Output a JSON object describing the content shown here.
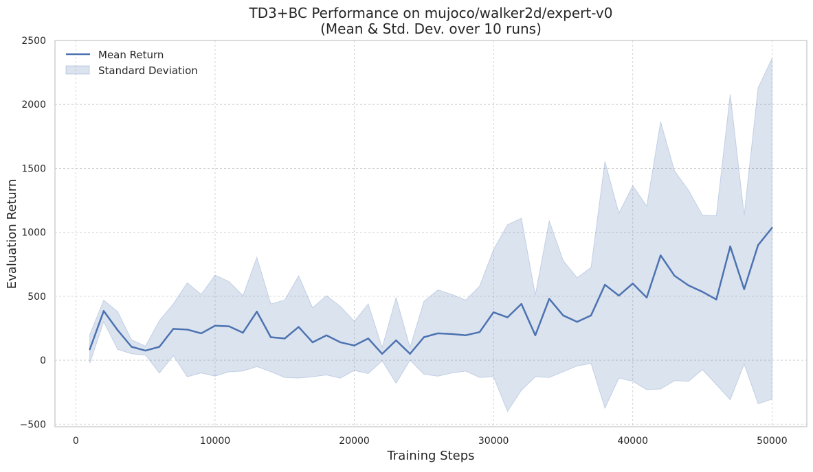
{
  "chart_data": {
    "type": "line",
    "title": "TD3+BC Performance on mujoco/walker2d/expert-v0",
    "subtitle": "(Mean & Std. Dev. over 10 runs)",
    "xlabel": "Training Steps",
    "ylabel": "Evaluation Return",
    "xlim": [
      -1500,
      52500
    ],
    "ylim": [
      -520,
      2500
    ],
    "xticks": [
      0,
      10000,
      20000,
      30000,
      40000,
      50000
    ],
    "yticks": [
      -500,
      0,
      500,
      1000,
      1500,
      2000,
      2500
    ],
    "grid": true,
    "legend_position": "top-left",
    "colors": {
      "line": "#4c72b0",
      "band": "#4c72b0"
    },
    "series": [
      {
        "name": "Mean Return",
        "kind": "line",
        "x": [
          1000,
          2000,
          3000,
          4000,
          5000,
          6000,
          7000,
          8000,
          9000,
          10000,
          11000,
          12000,
          13000,
          14000,
          15000,
          16000,
          17000,
          18000,
          19000,
          20000,
          21000,
          22000,
          23000,
          24000,
          25000,
          26000,
          27000,
          28000,
          29000,
          30000,
          31000,
          32000,
          33000,
          34000,
          35000,
          36000,
          37000,
          38000,
          39000,
          40000,
          41000,
          42000,
          43000,
          44000,
          45000,
          46000,
          47000,
          48000,
          49000,
          50000
        ],
        "values": [
          85,
          385,
          235,
          105,
          75,
          105,
          245,
          240,
          210,
          270,
          265,
          215,
          380,
          180,
          170,
          260,
          140,
          195,
          140,
          115,
          170,
          50,
          155,
          50,
          180,
          210,
          205,
          195,
          220,
          375,
          335,
          440,
          195,
          480,
          350,
          300,
          350,
          590,
          505,
          600,
          490,
          820,
          660,
          585,
          535,
          475,
          890,
          555,
          900,
          1035
        ]
      },
      {
        "name": "Standard Deviation",
        "kind": "band",
        "upper": [
          200,
          470,
          380,
          160,
          110,
          310,
          440,
          605,
          515,
          665,
          615,
          505,
          805,
          440,
          470,
          660,
          410,
          505,
          420,
          305,
          440,
          100,
          490,
          100,
          460,
          550,
          515,
          470,
          580,
          865,
          1060,
          1110,
          510,
          1090,
          780,
          645,
          725,
          1555,
          1150,
          1365,
          1205,
          1865,
          1480,
          1330,
          1135,
          1130,
          2080,
          1135,
          2130,
          2360
        ],
        "lower": [
          -25,
          300,
          85,
          50,
          40,
          -100,
          35,
          -130,
          -100,
          -125,
          -90,
          -85,
          -50,
          -90,
          -135,
          -140,
          -130,
          -115,
          -140,
          -80,
          -105,
          -5,
          -180,
          0,
          -110,
          -125,
          -100,
          -85,
          -135,
          -130,
          -400,
          -235,
          -130,
          -135,
          -90,
          -45,
          -25,
          -375,
          -140,
          -165,
          -230,
          -225,
          -160,
          -165,
          -75,
          -190,
          -310,
          -30,
          -340,
          -305
        ]
      }
    ]
  }
}
